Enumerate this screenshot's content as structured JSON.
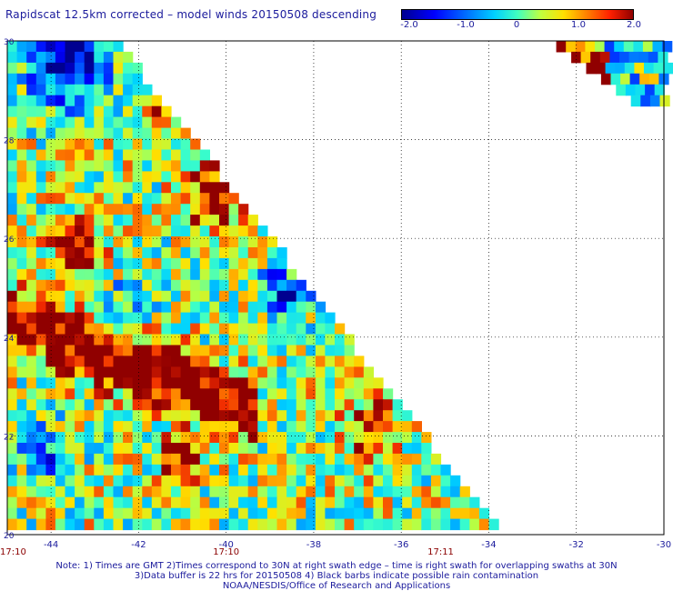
{
  "title": "Rapidscat 12.5km corrected – model winds 20150508 descending",
  "colorbar": {
    "labels": [
      "-2.0",
      "-1.0",
      "0",
      "1.0",
      "2.0"
    ],
    "range": [
      -2.0,
      2.0
    ]
  },
  "axes": {
    "x_ticks": [
      "-44",
      "-42",
      "-40",
      "-38",
      "-36",
      "-34",
      "-32",
      "-30"
    ],
    "y_ticks": [
      "30",
      "28",
      "26",
      "24",
      "22",
      "20"
    ],
    "lon_range": [
      -45,
      -30
    ],
    "lat_range": [
      20,
      30
    ]
  },
  "times": [
    "17:10",
    "17:10",
    "17:11"
  ],
  "notes": {
    "line1": "Note: 1) Times are GMT 2)Times correspond to 30N at right swath edge – time is right swath for overlapping swaths at 30N",
    "line2": "3)Data buffer is 22 hrs for 20150508 4) Black barbs indicate possible rain contamination",
    "line3": "NOAA/NESDIS/Office of Research and Applications"
  },
  "colors": {
    "text": "#1a1a9c",
    "time_text": "#8b0000",
    "grid": "#000000"
  }
}
